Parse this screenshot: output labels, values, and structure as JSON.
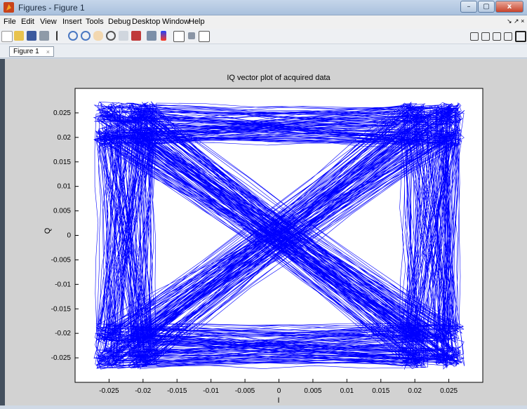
{
  "window": {
    "title": "Figures - Figure 1",
    "buttons": [
      "–",
      "▢",
      "x"
    ]
  },
  "menubar": {
    "items": [
      "File",
      "Edit",
      "View",
      "Insert",
      "Tools",
      "Debug",
      "Desktop",
      "Window",
      "Help"
    ],
    "right_arrows": "↘ ↗ ×"
  },
  "toolbar": {
    "icons": [
      "new-figure-icon",
      "open-icon",
      "save-icon",
      "print-icon",
      "pointer-icon",
      "zoom-in-icon",
      "zoom-out-icon",
      "pan-icon",
      "rotate-icon",
      "data-cursor-icon",
      "brush-icon",
      "link-icon",
      "colorbar-icon",
      "legend-icon",
      "hide-plot-tools-icon",
      "show-plot-tools-icon"
    ],
    "layout_icons": [
      "tile-icon",
      "split-vertical-icon",
      "split-horizontal-icon",
      "float-icon",
      "maximize-icon"
    ]
  },
  "tabs": {
    "active": "Figure 1",
    "close": "×"
  },
  "chart_data": {
    "type": "line",
    "title": "IQ vector plot of acquired data",
    "xlabel": "I",
    "ylabel": "Q",
    "xlim": [
      -0.03,
      0.03
    ],
    "ylim": [
      -0.03,
      0.03
    ],
    "xticks": [
      "-0.025",
      "-0.02",
      "-0.015",
      "-0.01",
      "-0.005",
      "0",
      "0.005",
      "0.01",
      "0.015",
      "0.02",
      "0.025"
    ],
    "yticks": [
      "0.025",
      "0.02",
      "0.015",
      "0.01",
      "0.005",
      "0",
      "-0.005",
      "-0.01",
      "-0.015",
      "-0.02",
      "-0.025"
    ],
    "grid": false,
    "line_color": "#0000ff",
    "clusters": {
      "i": [
        -0.025,
        -0.02,
        0.02,
        0.025
      ],
      "q": [
        -0.025,
        -0.02,
        0.02,
        0.025
      ]
    },
    "series": [
      {
        "transitions": "IQ trajectory between constellation corners (16-point, ±0.02/±0.025)"
      }
    ]
  }
}
